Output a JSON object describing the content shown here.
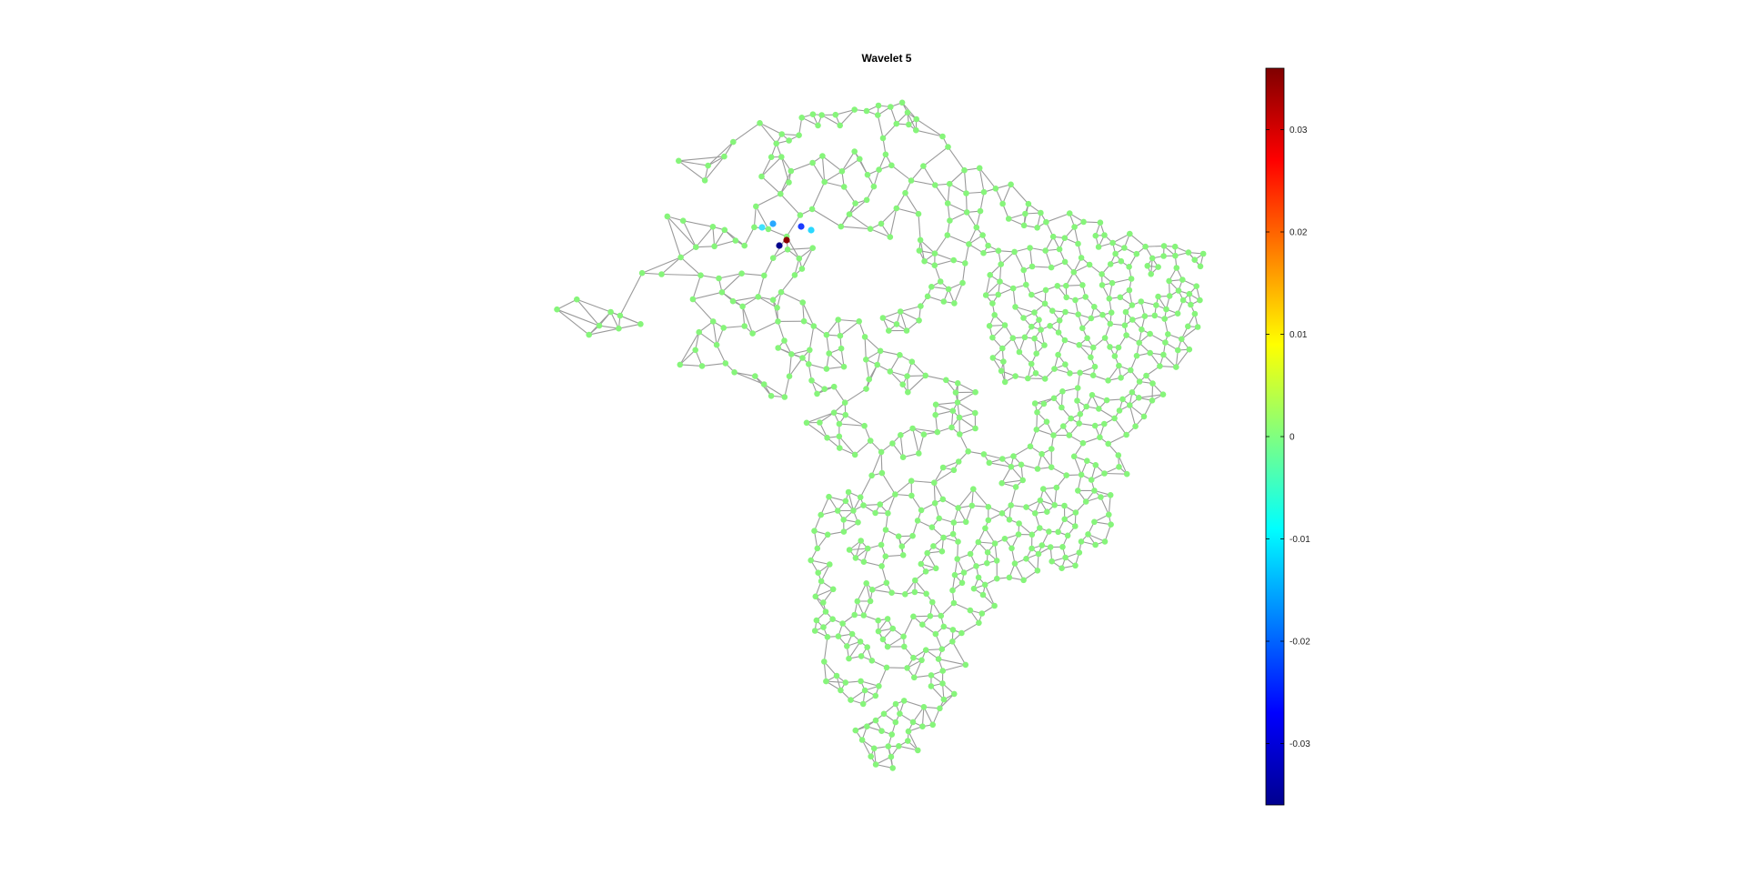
{
  "figure": {
    "title": "Wavelet 5"
  },
  "graph": {
    "default_node_color": "#86f57a",
    "edge_color": "#9a9a9a",
    "highlighted_nodes": [
      {
        "color": "#8b0000",
        "value": 0.036
      },
      {
        "color": "#00008b",
        "value": -0.036
      },
      {
        "color": "#1a3cff",
        "value": -0.025
      },
      {
        "color": "#2aa8ff",
        "value": -0.016
      },
      {
        "color": "#2ad8ff",
        "value": -0.01
      },
      {
        "color": "#40e0ff",
        "value": -0.008
      }
    ]
  },
  "colorbar": {
    "colormap": "jet",
    "range": [
      -0.036,
      0.036
    ],
    "ticks": [
      "0.03",
      "0.02",
      "0.01",
      "0",
      "-0.01",
      "-0.02",
      "-0.03"
    ],
    "tick_values": [
      0.03,
      0.02,
      0.01,
      0,
      -0.01,
      -0.02,
      -0.03
    ]
  }
}
